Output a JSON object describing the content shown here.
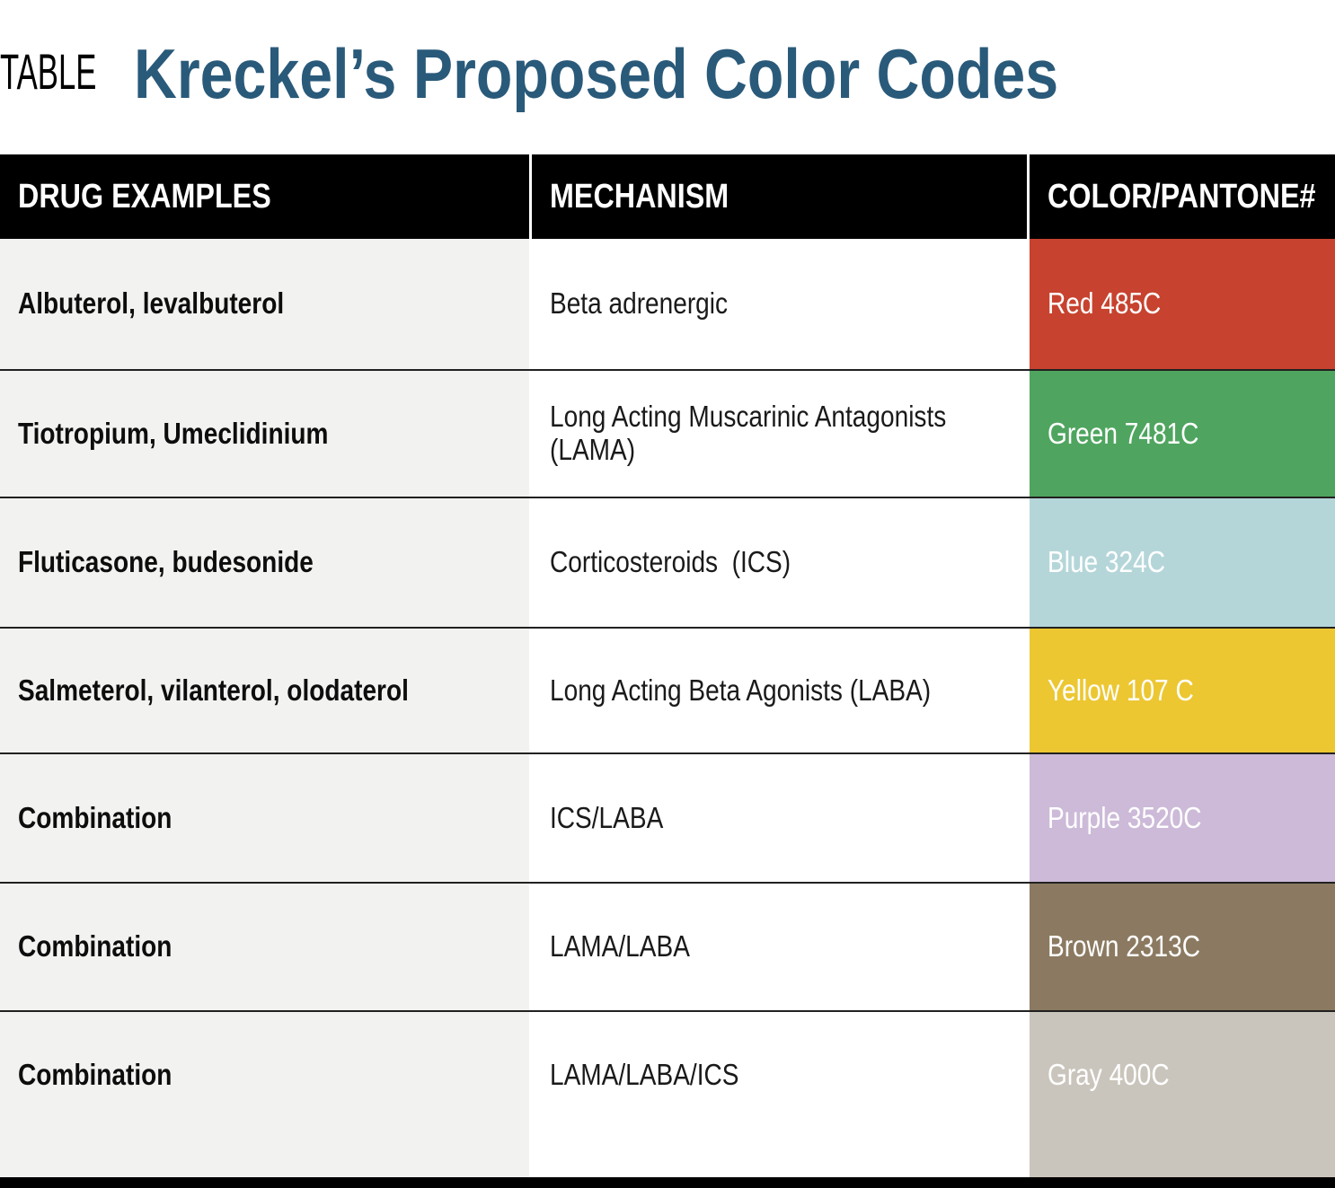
{
  "page": {
    "kicker": "TABLE",
    "title": "Kreckel’s Proposed Color Codes",
    "title_color": "#2a5a7a"
  },
  "table": {
    "columns": [
      "DRUG EXAMPLES",
      "MECHANISM",
      "COLOR/PANTONE#"
    ],
    "rows": [
      {
        "drug": "Albuterol, levalbuterol",
        "mechanism": "Beta adrenergic",
        "pantone_label": "Red 485C",
        "color": "#c7432f"
      },
      {
        "drug": "Tiotropium, Umeclidinium",
        "mechanism": "Long Acting Muscarinic Antagonists (LAMA)",
        "pantone_label": "Green 7481C",
        "color": "#4fa55f"
      },
      {
        "drug": "Fluticasone, budesonide",
        "mechanism": "Corticosteroids  (ICS)",
        "pantone_label": "Blue 324C",
        "color": "#b5d6d9"
      },
      {
        "drug": "Salmeterol, vilanterol, olodaterol",
        "mechanism": "Long Acting Beta Agonists (LABA)",
        "pantone_label": "Yellow 107 C",
        "color": "#ecc732"
      },
      {
        "drug": "Combination",
        "mechanism": "ICS/LABA",
        "pantone_label": "Purple 3520C",
        "color": "#ccbad8"
      },
      {
        "drug": "Combination",
        "mechanism": "LAMA/LABA",
        "pantone_label": "Brown 2313C",
        "color": "#8b7a61"
      },
      {
        "drug": "Combination",
        "mechanism": "LAMA/LABA/ICS",
        "pantone_label": "Gray 400C",
        "color": "#cac5bc"
      }
    ]
  },
  "colors": {
    "header_bg": "#000000",
    "drug_column_bg": "#f2f2f0",
    "divider": "#212121",
    "bottom_bar": "#000000"
  }
}
